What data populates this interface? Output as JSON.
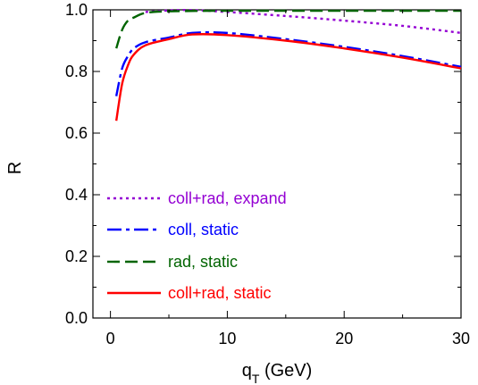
{
  "chart_data": {
    "type": "line",
    "xlabel": "q",
    "xlabel_sub": "T",
    "xlabel_unit": " (GeV)",
    "ylabel": "R",
    "xlim": [
      -1.5,
      30
    ],
    "ylim": [
      0.0,
      1.0
    ],
    "xticks": [
      0,
      10,
      20,
      30
    ],
    "xtick_labels": [
      "0",
      "10",
      "20",
      "30"
    ],
    "yticks": [
      0.0,
      0.2,
      0.4,
      0.6,
      0.8,
      1.0
    ],
    "ytick_labels": [
      "0.0",
      "0.2",
      "0.4",
      "0.6",
      "0.8",
      "1.0"
    ],
    "grid": false,
    "legend_position": "bottom-left",
    "series": [
      {
        "name": "coll+rad, expand",
        "color": "#9400D3",
        "dash": "dotted",
        "points": [
          [
            3,
            0.993
          ],
          [
            5,
            0.998
          ],
          [
            7,
            0.999
          ],
          [
            10,
            0.993
          ],
          [
            15,
            0.98
          ],
          [
            20,
            0.965
          ],
          [
            25,
            0.948
          ],
          [
            30,
            0.925
          ]
        ]
      },
      {
        "name": "coll, static",
        "color": "#0000FF",
        "dash": "dashdot",
        "points": [
          [
            0.5,
            0.72
          ],
          [
            1,
            0.81
          ],
          [
            1.5,
            0.85
          ],
          [
            2,
            0.875
          ],
          [
            3,
            0.895
          ],
          [
            5,
            0.91
          ],
          [
            7,
            0.925
          ],
          [
            10,
            0.925
          ],
          [
            15,
            0.905
          ],
          [
            20,
            0.88
          ],
          [
            25,
            0.85
          ],
          [
            30,
            0.815
          ]
        ]
      },
      {
        "name": "rad, static",
        "color": "#006400",
        "dash": "dashed",
        "points": [
          [
            0.5,
            0.875
          ],
          [
            1,
            0.935
          ],
          [
            1.5,
            0.965
          ],
          [
            2,
            0.975
          ],
          [
            3,
            0.99
          ],
          [
            5,
            0.995
          ],
          [
            10,
            0.997
          ],
          [
            20,
            0.997
          ],
          [
            30,
            0.997
          ]
        ]
      },
      {
        "name": "coll+rad, static",
        "color": "#FF0000",
        "dash": "solid",
        "points": [
          [
            0.5,
            0.64
          ],
          [
            1,
            0.76
          ],
          [
            1.5,
            0.82
          ],
          [
            2,
            0.855
          ],
          [
            3,
            0.885
          ],
          [
            5,
            0.905
          ],
          [
            7,
            0.92
          ],
          [
            10,
            0.918
          ],
          [
            15,
            0.9
          ],
          [
            20,
            0.875
          ],
          [
            25,
            0.845
          ],
          [
            30,
            0.81
          ]
        ]
      }
    ]
  }
}
